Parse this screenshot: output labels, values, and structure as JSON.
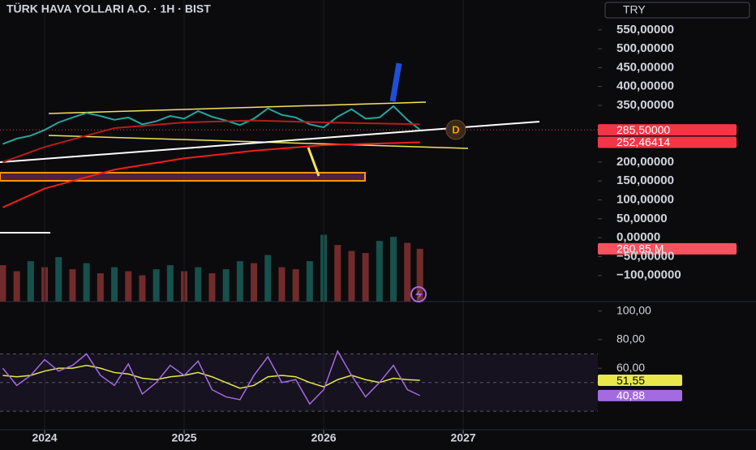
{
  "currency": "TRY",
  "marker_label": "D",
  "chart_data": [
    {
      "type": "line",
      "title": "TÜRK HAVA YOLLARI A.O. · 1H · BIST",
      "xlim": [
        2023.68,
        2027.965
      ],
      "xticks": [
        2024,
        2025,
        2026,
        2027
      ],
      "ylim": [
        -165,
        629
      ],
      "yticks": [
        {
          "value": 550,
          "label": "550,00000"
        },
        {
          "value": 500,
          "label": "500,00000"
        },
        {
          "value": 450,
          "label": "450,00000"
        },
        {
          "value": 400,
          "label": "400,00000"
        },
        {
          "value": 350,
          "label": "350,00000"
        },
        {
          "value": 200,
          "label": "200,00000"
        },
        {
          "value": 150,
          "label": "150,00000"
        },
        {
          "value": 100,
          "label": "100,00000"
        },
        {
          "value": 50,
          "label": "50,00000"
        },
        {
          "value": 0,
          "label": "0,00000"
        },
        {
          "value": -50,
          "label": "−50,00000"
        },
        {
          "value": -100,
          "label": "−100,00000"
        }
      ],
      "series": [
        {
          "color": "#26a69a",
          "x": [
            2023.7,
            2023.8,
            2023.9,
            2024.0,
            2024.1,
            2024.2,
            2024.3,
            2024.4,
            2024.5,
            2024.6,
            2024.7,
            2024.8,
            2024.9,
            2025.0,
            2025.1,
            2025.2,
            2025.3,
            2025.4,
            2025.5,
            2025.6,
            2025.7,
            2025.8,
            2025.9,
            2026.0,
            2026.1,
            2026.2,
            2026.3,
            2026.4,
            2026.5,
            2026.6,
            2026.69
          ],
          "values": [
            248,
            262,
            270,
            285,
            305,
            318,
            330,
            322,
            312,
            318,
            300,
            308,
            322,
            315,
            335,
            320,
            310,
            298,
            315,
            342,
            325,
            318,
            300,
            292,
            320,
            340,
            315,
            318,
            348,
            312,
            285.5
          ],
          "value_labels": [
            null,
            null,
            null,
            null,
            null,
            null,
            null,
            null,
            null,
            null,
            null,
            null,
            null,
            null,
            null,
            null,
            null,
            null,
            null,
            null,
            null,
            null,
            null,
            null,
            null,
            null,
            null,
            null,
            null,
            null,
            "285,50000"
          ]
        },
        {
          "color": "#b71c1c",
          "x": [
            2023.7,
            2024.0,
            2024.5,
            2025.0,
            2025.5,
            2026.0,
            2026.69
          ],
          "values": [
            200,
            240,
            290,
            305,
            310,
            305,
            300
          ],
          "value_labels": [
            null,
            null,
            null,
            null,
            null,
            null,
            null
          ]
        },
        {
          "color": "#f21d1d",
          "x": [
            2023.7,
            2024.0,
            2024.5,
            2025.0,
            2025.5,
            2026.0,
            2026.69
          ],
          "values": [
            80,
            130,
            180,
            210,
            230,
            245,
            252.46414
          ],
          "value_labels": [
            null,
            null,
            null,
            null,
            null,
            null,
            "252,46414"
          ]
        }
      ]
    },
    {
      "type": "bar",
      "xlim": [
        2023.68,
        2027.965
      ],
      "ylim": [
        0,
        1490
      ],
      "x": [
        2023.7,
        2023.8,
        2023.9,
        2024.0,
        2024.1,
        2024.2,
        2024.3,
        2024.4,
        2024.5,
        2024.6,
        2024.7,
        2024.8,
        2024.9,
        2025.0,
        2025.1,
        2025.2,
        2025.3,
        2025.4,
        2025.5,
        2025.6,
        2025.7,
        2025.8,
        2025.9,
        2026.0,
        2026.1,
        2026.2,
        2026.3,
        2026.4,
        2026.5,
        2026.6,
        2026.69
      ],
      "values": [
        180,
        150,
        200,
        170,
        220,
        160,
        190,
        140,
        170,
        150,
        130,
        160,
        180,
        150,
        170,
        140,
        160,
        200,
        190,
        230,
        170,
        160,
        200,
        330,
        280,
        250,
        240,
        300,
        320,
        290,
        260.85
      ],
      "value_labels": [
        null,
        null,
        null,
        null,
        null,
        null,
        null,
        null,
        null,
        null,
        null,
        null,
        null,
        null,
        null,
        null,
        null,
        null,
        null,
        null,
        null,
        null,
        null,
        null,
        null,
        null,
        null,
        null,
        null,
        null,
        "260,85 M"
      ],
      "color": "#f7525f"
    },
    {
      "type": "line",
      "xlim": [
        2023.68,
        2027.965
      ],
      "ylim": [
        17,
        106
      ],
      "yticks": [
        {
          "value": 100,
          "label": "100,00"
        },
        {
          "value": 80,
          "label": "80,00"
        },
        {
          "value": 60,
          "label": "60,00"
        }
      ],
      "levels": [
        70,
        50,
        30
      ],
      "x": [
        2023.7,
        2023.8,
        2023.9,
        2024.0,
        2024.1,
        2024.2,
        2024.3,
        2024.4,
        2024.5,
        2024.6,
        2024.7,
        2024.8,
        2024.9,
        2025.0,
        2025.1,
        2025.2,
        2025.3,
        2025.4,
        2025.5,
        2025.6,
        2025.7,
        2025.8,
        2025.9,
        2026.0,
        2026.1,
        2026.2,
        2026.3,
        2026.4,
        2026.5,
        2026.6,
        2026.69
      ],
      "series": [
        {
          "color": "#e8e84a",
          "values": [
            55,
            54,
            55,
            58,
            60,
            60,
            62,
            60,
            57,
            56,
            53,
            52,
            54,
            55,
            57,
            54,
            50,
            46,
            48,
            54,
            55,
            54,
            50,
            47,
            52,
            55,
            52,
            50,
            53,
            52,
            51.55
          ],
          "value_labels": [
            null,
            null,
            null,
            null,
            null,
            null,
            null,
            null,
            null,
            null,
            null,
            null,
            null,
            null,
            null,
            null,
            null,
            null,
            null,
            null,
            null,
            null,
            null,
            null,
            null,
            null,
            null,
            null,
            null,
            null,
            "51,55"
          ]
        },
        {
          "color": "#a46be0",
          "values": [
            60,
            48,
            55,
            66,
            58,
            62,
            70,
            55,
            48,
            63,
            42,
            50,
            62,
            55,
            65,
            45,
            40,
            38,
            55,
            68,
            50,
            52,
            35,
            45,
            72,
            55,
            40,
            50,
            62,
            45,
            40.88
          ],
          "value_labels": [
            null,
            null,
            null,
            null,
            null,
            null,
            null,
            null,
            null,
            null,
            null,
            null,
            null,
            null,
            null,
            null,
            null,
            null,
            null,
            null,
            null,
            null,
            null,
            null,
            null,
            null,
            null,
            null,
            null,
            null,
            "40,88"
          ]
        }
      ]
    }
  ]
}
